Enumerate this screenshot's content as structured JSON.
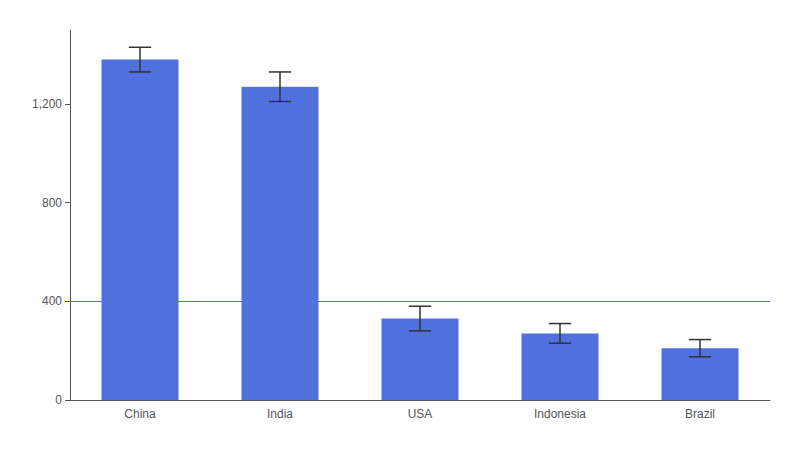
{
  "chart_data": {
    "type": "bar",
    "categories": [
      "China",
      "India",
      "USA",
      "Indonesia",
      "Brazil"
    ],
    "values": [
      1380,
      1270,
      330,
      270,
      210
    ],
    "errors": [
      50,
      60,
      50,
      40,
      35
    ],
    "reference_line": 400,
    "ylim": [
      0,
      1500
    ],
    "yticks": [
      0,
      400,
      800,
      {
        "value": 1200,
        "label": "1,200"
      }
    ],
    "grid": false
  }
}
